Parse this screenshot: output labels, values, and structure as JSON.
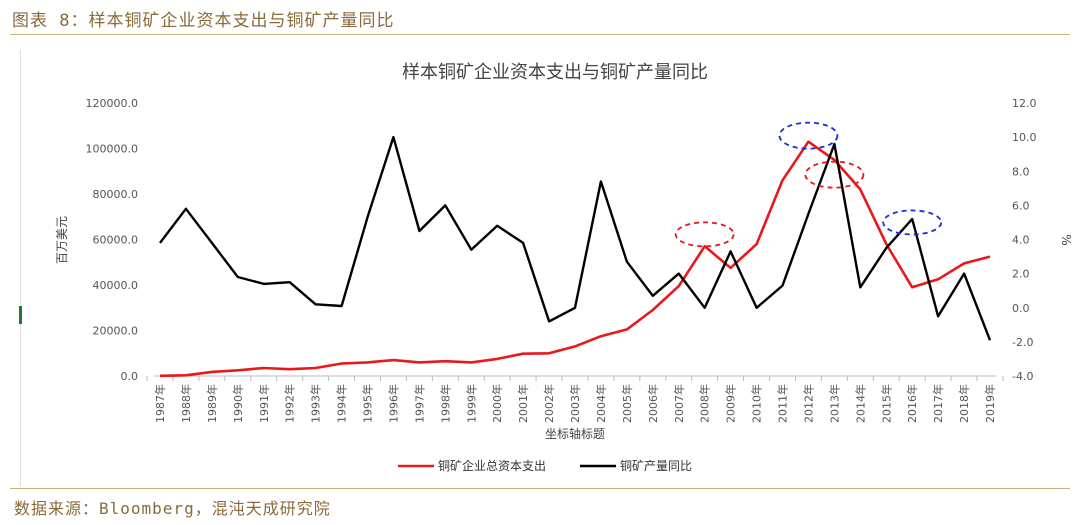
{
  "figure_title": "图表 8：样本铜矿企业资本支出与铜矿产量同比",
  "source": "数据来源：Bloomberg，混沌天成研究院",
  "colors": {
    "capex": "#e8191c",
    "production": "#000000",
    "accent": "#8a6a3a",
    "ellipse_red": "#e8191c",
    "ellipse_blue": "#1f2ed6"
  },
  "chart_data": {
    "type": "line",
    "title": "样本铜矿企业资本支出与铜矿产量同比",
    "xlabel": "坐标轴标题",
    "ylabel_left": "百万美元",
    "ylabel_right": "%",
    "categories": [
      "1987年",
      "1988年",
      "1989年",
      "1990年",
      "1991年",
      "1992年",
      "1993年",
      "1994年",
      "1995年",
      "1996年",
      "1997年",
      "1998年",
      "1999年",
      "2000年",
      "2001年",
      "2002年",
      "2003年",
      "2004年",
      "2005年",
      "2006年",
      "2007年",
      "2008年",
      "2009年",
      "2010年",
      "2011年",
      "2012年",
      "2013年",
      "2014年",
      "2015年",
      "2016年",
      "2017年",
      "2018年",
      "2019年"
    ],
    "y_left": {
      "min": 0,
      "max": 120000,
      "ticks": [
        "0.0",
        "20000.0",
        "40000.0",
        "60000.0",
        "80000.0",
        "100000.0",
        "120000.0"
      ]
    },
    "y_right": {
      "min": -4,
      "max": 12,
      "ticks": [
        "-4.0",
        "-2.0",
        "0.0",
        "2.0",
        "4.0",
        "6.0",
        "8.0",
        "10.0",
        "12.0"
      ]
    },
    "series": [
      {
        "name": "铜矿企业总资本支出",
        "axis": "left",
        "color": "#e8191c",
        "values": [
          100,
          300,
          1800,
          2500,
          3500,
          3000,
          3500,
          5500,
          6000,
          7000,
          6000,
          6500,
          6000,
          7500,
          9800,
          10000,
          13000,
          17500,
          20500,
          29000,
          39500,
          57000,
          47500,
          58000,
          86000,
          103000,
          95000,
          82000,
          58000,
          39000,
          42500,
          49500,
          52500
        ]
      },
      {
        "name": "铜矿产量同比",
        "axis": "right",
        "color": "#000000",
        "values": [
          3.8,
          5.8,
          3.8,
          1.8,
          1.4,
          1.5,
          0.2,
          0.1,
          5.3,
          10.0,
          4.5,
          6.0,
          3.4,
          4.8,
          3.8,
          -0.8,
          0.0,
          7.4,
          2.7,
          0.7,
          2.0,
          0.0,
          3.3,
          0.0,
          1.3,
          5.5,
          9.6,
          1.2,
          3.5,
          5.2,
          -0.5,
          2.0,
          -1.9
        ]
      }
    ],
    "legend": {
      "position": "bottom"
    },
    "grid": false
  }
}
